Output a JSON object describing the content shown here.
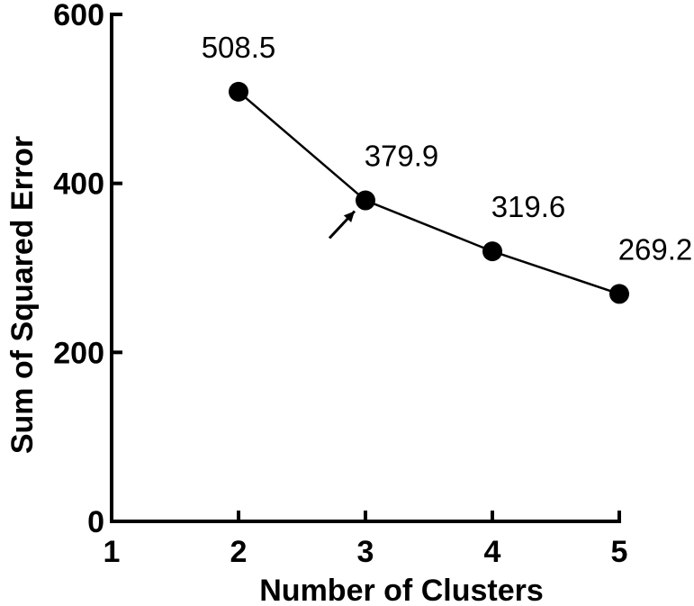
{
  "chart_data": {
    "type": "line",
    "xlabel": "Number of Clusters",
    "ylabel": "Sum of Squared Error",
    "xlim": [
      1,
      5
    ],
    "ylim": [
      0,
      600
    ],
    "x_ticks": [
      "1",
      "2",
      "3",
      "4",
      "5"
    ],
    "y_ticks": [
      "0",
      "200",
      "400",
      "600"
    ],
    "grid": false,
    "series": [
      {
        "x": [
          2,
          3,
          4,
          5
        ],
        "y": [
          508.5,
          379.9,
          319.6,
          269.2
        ],
        "labels": [
          "508.5",
          "379.9",
          "319.6",
          "269.2"
        ],
        "color": "#000000",
        "marker": "filled-circle"
      }
    ],
    "annotation": {
      "type": "arrow",
      "points_to_x": 3,
      "points_to_y": 379.9
    }
  }
}
